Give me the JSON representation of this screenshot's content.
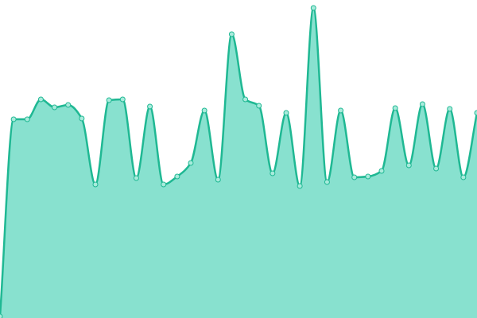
{
  "chart_data": {
    "type": "area",
    "line_color": "#1fb893",
    "fill_color": "#88e1cf",
    "point_fill": "#a9ebdc",
    "ylim": [
      0,
      400
    ],
    "values": [
      2,
      250,
      250,
      275,
      265,
      268,
      251,
      168,
      274,
      275,
      176,
      266,
      168,
      178,
      195,
      261,
      174,
      357,
      275,
      267,
      182,
      258,
      166,
      390,
      171,
      261,
      177,
      178,
      185,
      264,
      192,
      269,
      188,
      263,
      177,
      258
    ]
  }
}
